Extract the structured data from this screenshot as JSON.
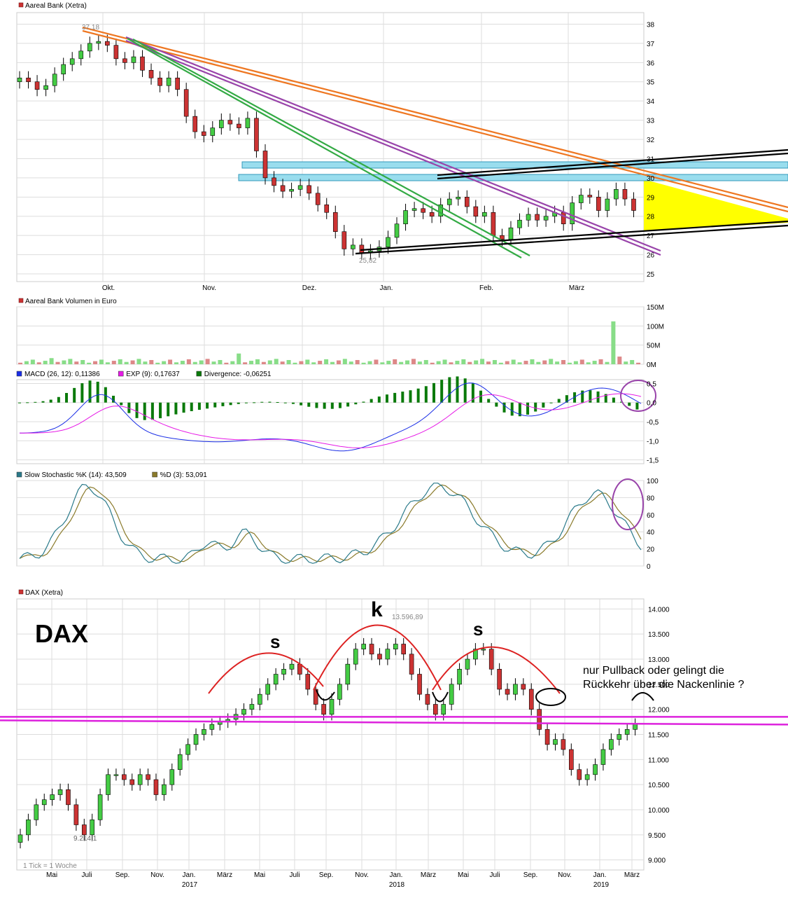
{
  "colors": {
    "up": "#44cc44",
    "down": "#cc3333",
    "grid": "#dddddd",
    "macd": "#1a2ee6",
    "signal": "#e61ae6",
    "divergence": "#0a7a0a",
    "stochK": "#2a7a8a",
    "stochD": "#8a7a2a",
    "orange": "#ee7722",
    "purple": "#9944aa",
    "green": "#33aa44",
    "black": "#000000",
    "cyan": "#99ddee",
    "yellow": "#ffff00",
    "magenta": "#dd22dd",
    "arc": "#dd2222",
    "volUp": "#88dd88",
    "volDown": "#dd8888"
  },
  "panels": {
    "price": {
      "title": "Aareal Bank (Xetra)",
      "yticks": [
        "38",
        "37",
        "36",
        "35",
        "34",
        "33",
        "32",
        "31",
        "30",
        "29",
        "28",
        "27",
        "26",
        "25"
      ],
      "xticks": [
        "Okt.",
        "Nov.",
        "Dez.",
        "Jan.",
        "Feb.",
        "März"
      ],
      "high_label": "37,18",
      "low_label": "25,82"
    },
    "volume": {
      "title": "Aareal Bank Volumen in Euro",
      "yticks": [
        "150M",
        "100M",
        "50M",
        "0M"
      ]
    },
    "macd": {
      "legend": [
        {
          "text": "MACD (26, 12): 0,11386",
          "color": "#1a2ee6"
        },
        {
          "text": "EXP (9): 0,17637",
          "color": "#e61ae6"
        },
        {
          "text": "Divergence: -0,06251",
          "color": "#0a7a0a"
        }
      ],
      "yticks": [
        "0,5",
        "0,0",
        "-0,5",
        "-1,0",
        "-1,5"
      ]
    },
    "stoch": {
      "legend": [
        {
          "text": "Slow Stochastic %K (14): 43,509",
          "color": "#2a7a8a"
        },
        {
          "text": "%D (3): 53,091",
          "color": "#8a7a2a"
        }
      ],
      "yticks": [
        "100",
        "80",
        "60",
        "40",
        "20",
        "0"
      ]
    },
    "dax": {
      "title": "DAX (Xetra)",
      "big_label": "DAX",
      "yticks": [
        "14.000",
        "13.500",
        "13.000",
        "12.500",
        "12.000",
        "11.500",
        "11.000",
        "10.500",
        "10.000",
        "9.500",
        "9.000"
      ],
      "xticks": [
        "Mai",
        "Juli",
        "Sep.",
        "Nov.",
        "Jan.",
        "März",
        "Mai",
        "Juli",
        "Sep.",
        "Nov.",
        "Jan.",
        "März",
        "Mai",
        "Juli",
        "Sep.",
        "Nov.",
        "Jan.",
        "März"
      ],
      "years": [
        "2017",
        "2018",
        "2019"
      ],
      "high_label": "13.596,89",
      "low_label": "9.214,1",
      "shoulder_left": "s",
      "head": "k",
      "shoulder_right": "s",
      "question_line1": "nur Pullback oder gelingt die",
      "question_line2": "Rückkehr über die Nackenlinie ?",
      "footnote": "1 Tick = 1 Woche"
    }
  },
  "chart_data": [
    {
      "type": "candlestick",
      "title": "Aareal Bank (Xetra)",
      "x_labels": [
        "Okt.",
        "Nov.",
        "Dez.",
        "Jan.",
        "Feb.",
        "März"
      ],
      "ylim": [
        24.6,
        38.6
      ],
      "close_series": [
        35.2,
        35.0,
        34.6,
        34.8,
        35.4,
        35.9,
        36.2,
        36.6,
        37.0,
        37.1,
        36.9,
        36.2,
        36.0,
        36.3,
        35.6,
        35.2,
        34.8,
        35.2,
        34.6,
        33.2,
        32.4,
        32.2,
        32.6,
        33.0,
        32.8,
        32.6,
        33.1,
        31.4,
        30.0,
        29.6,
        29.3,
        29.4,
        29.6,
        29.2,
        28.6,
        28.2,
        27.2,
        26.3,
        26.5,
        26.1,
        26.2,
        26.4,
        26.9,
        27.6,
        28.3,
        28.4,
        28.2,
        28.0,
        28.6,
        28.9,
        29.0,
        28.5,
        28.0,
        28.2,
        27.0,
        26.8,
        27.4,
        27.8,
        28.1,
        27.8,
        28.0,
        28.2,
        27.6,
        28.7,
        29.1,
        29.0,
        28.3,
        28.9,
        29.4,
        28.9,
        28.3
      ]
    },
    {
      "type": "bar",
      "title": "Aareal Bank Volumen in Euro",
      "ylim": [
        0,
        150
      ],
      "unit": "M",
      "spike_value": 112
    },
    {
      "type": "line",
      "series": [
        {
          "name": "MACD (26, 12)",
          "last": 0.11386
        },
        {
          "name": "EXP (9)",
          "last": 0.17637
        },
        {
          "name": "Divergence",
          "last": -0.06251
        }
      ],
      "ylim": [
        -1.5,
        0.5
      ]
    },
    {
      "type": "line",
      "series": [
        {
          "name": "Slow Stochastic %K (14)",
          "last": 43.509
        },
        {
          "name": "%D (3)",
          "last": 53.091
        }
      ],
      "ylim": [
        0,
        100
      ]
    },
    {
      "type": "candlestick",
      "title": "DAX (Xetra)",
      "x_labels": [
        "Mai",
        "Juli",
        "Sep.",
        "Nov.",
        "Jan.",
        "März",
        "Mai",
        "Juli",
        "Sep.",
        "Nov.",
        "Jan.",
        "März",
        "Mai",
        "Juli",
        "Sep.",
        "Nov.",
        "Jan.",
        "März"
      ],
      "ylim": [
        8800,
        14200
      ],
      "high": 13596.89,
      "low": 9214.1,
      "neckline": [
        11850,
        11780
      ],
      "close_series": [
        9500,
        9800,
        10100,
        10200,
        10300,
        10400,
        10100,
        9700,
        9500,
        9800,
        10300,
        10700,
        10700,
        10600,
        10500,
        10700,
        10600,
        10300,
        10500,
        10800,
        11100,
        11300,
        11500,
        11600,
        11700,
        11750,
        11800,
        11900,
        12000,
        12100,
        12300,
        12500,
        12700,
        12800,
        12900,
        12700,
        12400,
        12100,
        11900,
        12200,
        12500,
        12900,
        13200,
        13300,
        13100,
        13000,
        13200,
        13300,
        13100,
        12700,
        12300,
        12100,
        11900,
        12100,
        12500,
        12800,
        13000,
        13200,
        13200,
        12800,
        12400,
        12300,
        12500,
        12400,
        12000,
        11600,
        11300,
        11400,
        11200,
        10800,
        10600,
        10700,
        10900,
        11200,
        11400,
        11500,
        11600,
        11700
      ]
    }
  ]
}
